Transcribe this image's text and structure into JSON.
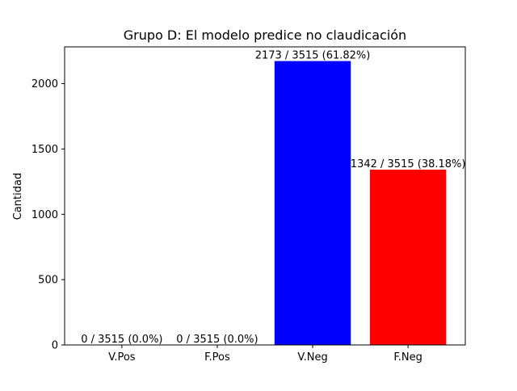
{
  "chart_data": {
    "type": "bar",
    "title": "Grupo D: El modelo predice no claudicación",
    "xlabel": "",
    "ylabel": "Cantidad",
    "categories": [
      "V.Pos",
      "F.Pos",
      "V.Neg",
      "F.Neg"
    ],
    "values": [
      0,
      0,
      2173,
      1342
    ],
    "colors": [
      "#0000ff",
      "#ff0000",
      "#0000ff",
      "#ff0000"
    ],
    "data_labels": [
      "0 / 3515 (0.0%)",
      "0 / 3515 (0.0%)",
      "2173 / 3515 (61.82%)",
      "1342 / 3515 (38.18%)"
    ],
    "yticks": [
      0,
      500,
      1000,
      1500,
      2000
    ],
    "ytick_labels": [
      "0",
      "500",
      "1000",
      "1500",
      "2000"
    ],
    "ylim": [
      0,
      2281.65
    ],
    "grid": false,
    "legend": "none"
  }
}
